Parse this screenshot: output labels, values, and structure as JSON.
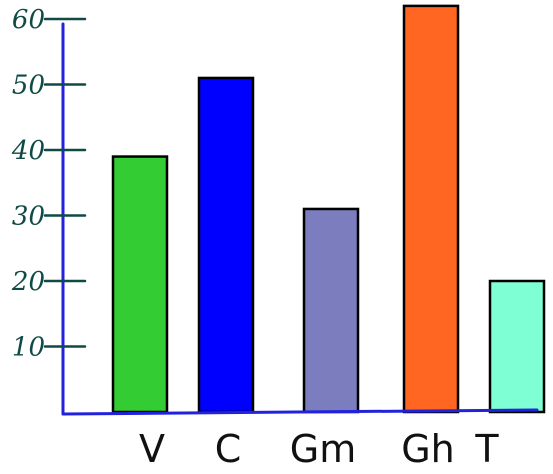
{
  "chart_data": {
    "type": "bar",
    "title": "",
    "xlabel": "",
    "ylabel": "",
    "categories": [
      "V",
      "C",
      "Gm",
      "Gh",
      "T"
    ],
    "values": [
      39,
      51,
      31,
      62,
      20
    ],
    "colors": [
      "#33cc33",
      "#0000ff",
      "#7b7dbf",
      "#ff6622",
      "#7fffd4"
    ],
    "y_ticks": [
      10,
      20,
      30,
      40,
      50,
      60
    ],
    "y_tick_labels": [
      "10",
      "20",
      "30",
      "40",
      "50",
      "60"
    ],
    "ylim": [
      0,
      62
    ],
    "grid": false,
    "axis_color": "#2222dd",
    "bar_outline_color": "#000000"
  }
}
